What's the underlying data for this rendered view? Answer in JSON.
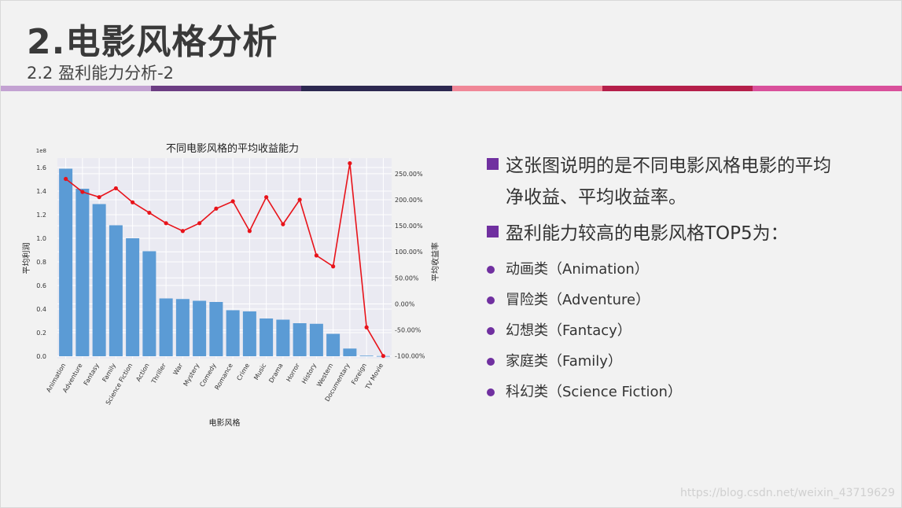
{
  "slide": {
    "title": "2.电影风格分析",
    "subtitle": "2.2 盈利能力分析-2",
    "colorbar": [
      "#c3a2d2",
      "#6c3d83",
      "#2c2850",
      "#f08797",
      "#b51f4a",
      "#d9509b"
    ]
  },
  "bullets": {
    "main": [
      {
        "lines": [
          "这张图说明的是不同电影风格电影的平均",
          "净收益、平均收益率。"
        ]
      },
      {
        "lines": [
          "盈利能力较高的电影风格TOP5为："
        ]
      }
    ],
    "sub": [
      "动画类（Animation）",
      "冒险类（Adventure）",
      "幻想类（Fantacy）",
      "家庭类（Family）",
      "科幻类（Science Fiction）"
    ]
  },
  "watermark": "https://blog.csdn.net/weixin_43719629",
  "chart_data": {
    "type": "bar",
    "title": "不同电影风格的平均收益能力",
    "xlabel": "电影风格",
    "ylabel": "平均利润",
    "y2label": "平均收益率",
    "y_offset_label": "1e8",
    "categories": [
      "Animation",
      "Adventure",
      "Fantasy",
      "Family",
      "Science Fiction",
      "Action",
      "Thriller",
      "War",
      "Mystery",
      "Comedy",
      "Romance",
      "Crime",
      "Music",
      "Drama",
      "Horror",
      "History",
      "Western",
      "Documentary",
      "Foreign",
      "TV Movie"
    ],
    "series": [
      {
        "type": "bar",
        "color": "#5b9bd5",
        "axis": "left",
        "values": [
          1.59,
          1.42,
          1.29,
          1.11,
          1.0,
          0.89,
          0.49,
          0.485,
          0.47,
          0.46,
          0.39,
          0.38,
          0.32,
          0.31,
          0.28,
          0.275,
          0.19,
          0.065,
          0.005,
          0.002
        ]
      },
      {
        "type": "line",
        "color": "#e8131a",
        "axis": "right",
        "values": [
          240,
          215,
          205,
          222,
          195,
          175,
          155,
          140,
          155,
          183,
          197,
          140,
          205,
          153,
          200,
          93,
          72,
          270,
          -45,
          -100
        ]
      }
    ],
    "ylim": [
      -0.02,
      1.68
    ],
    "yticks": [
      0.0,
      0.2,
      0.4,
      0.6,
      0.8,
      1.0,
      1.2,
      1.4,
      1.6
    ],
    "ytick_labels": [
      "0.0",
      "0.2",
      "0.4",
      "0.6",
      "0.8",
      "1.0",
      "1.2",
      "1.4",
      "1.6"
    ],
    "y2lim": [
      -105,
      280
    ],
    "y2ticks": [
      -100,
      -50,
      0,
      50,
      100,
      150,
      200,
      250
    ],
    "y2tick_labels": [
      "-100.00%",
      "-50.00%",
      "0.00%",
      "50.00%",
      "100.00%",
      "150.00%",
      "200.00%",
      "250.00%"
    ],
    "grid": true
  }
}
